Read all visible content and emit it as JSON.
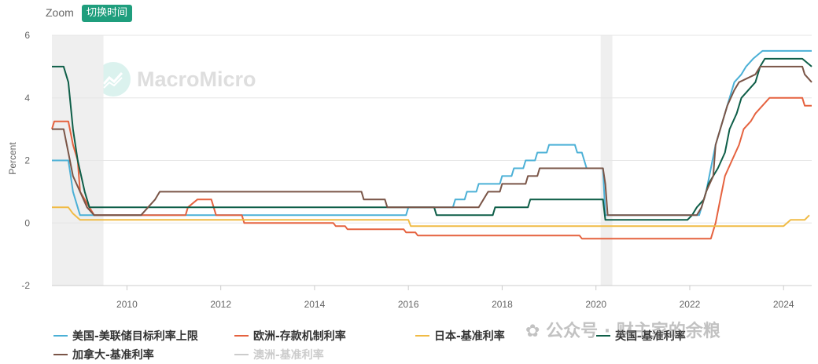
{
  "toolbar": {
    "zoom_label": "Zoom",
    "switch_time_label": "切换时间"
  },
  "watermark": {
    "logo_text": "MacroMicro",
    "wechat_text": "公众号 · 财主家的余粮"
  },
  "chart_data": {
    "type": "line",
    "title": "",
    "xlabel": "",
    "ylabel": "Percent",
    "xlim": [
      2008.4,
      2024.6
    ],
    "ylim": [
      -2,
      6
    ],
    "x_ticks": [
      "2010",
      "2012",
      "2014",
      "2016",
      "2018",
      "2020",
      "2022",
      "2024"
    ],
    "y_ticks": [
      "-2",
      "0",
      "2",
      "4",
      "6"
    ],
    "grid": "horizontal",
    "legend_position": "bottom",
    "recession_bands": [
      [
        2008.4,
        2009.5
      ],
      [
        2020.1,
        2020.35
      ]
    ],
    "series": [
      {
        "name": "美国-美联储目标利率上限",
        "color": "#4bb0d6",
        "visible": true,
        "points": [
          [
            2008.4,
            2.0
          ],
          [
            2008.75,
            2.0
          ],
          [
            2008.8,
            1.5
          ],
          [
            2008.85,
            1.0
          ],
          [
            2009.0,
            0.25
          ],
          [
            2015.95,
            0.25
          ],
          [
            2016.0,
            0.5
          ],
          [
            2016.95,
            0.5
          ],
          [
            2017.0,
            0.75
          ],
          [
            2017.2,
            0.75
          ],
          [
            2017.25,
            1.0
          ],
          [
            2017.45,
            1.0
          ],
          [
            2017.5,
            1.25
          ],
          [
            2017.95,
            1.25
          ],
          [
            2018.0,
            1.5
          ],
          [
            2018.2,
            1.5
          ],
          [
            2018.25,
            1.75
          ],
          [
            2018.45,
            1.75
          ],
          [
            2018.5,
            2.0
          ],
          [
            2018.7,
            2.0
          ],
          [
            2018.75,
            2.25
          ],
          [
            2018.95,
            2.25
          ],
          [
            2019.0,
            2.5
          ],
          [
            2019.55,
            2.5
          ],
          [
            2019.6,
            2.25
          ],
          [
            2019.7,
            2.25
          ],
          [
            2019.75,
            2.0
          ],
          [
            2019.8,
            1.75
          ],
          [
            2020.15,
            1.75
          ],
          [
            2020.2,
            0.25
          ],
          [
            2022.2,
            0.25
          ],
          [
            2022.25,
            0.5
          ],
          [
            2022.35,
            1.0
          ],
          [
            2022.45,
            1.75
          ],
          [
            2022.55,
            2.5
          ],
          [
            2022.7,
            3.25
          ],
          [
            2022.85,
            4.0
          ],
          [
            2022.95,
            4.5
          ],
          [
            2023.1,
            4.75
          ],
          [
            2023.2,
            5.0
          ],
          [
            2023.35,
            5.25
          ],
          [
            2023.55,
            5.5
          ],
          [
            2024.6,
            5.5
          ]
        ]
      },
      {
        "name": "欧洲-存款机制利率",
        "color": "#e5623f",
        "visible": true,
        "points": [
          [
            2008.4,
            3.0
          ],
          [
            2008.45,
            3.25
          ],
          [
            2008.75,
            3.25
          ],
          [
            2008.85,
            2.5
          ],
          [
            2008.95,
            2.0
          ],
          [
            2009.0,
            1.0
          ],
          [
            2009.2,
            0.5
          ],
          [
            2009.3,
            0.25
          ],
          [
            2011.25,
            0.25
          ],
          [
            2011.3,
            0.5
          ],
          [
            2011.5,
            0.75
          ],
          [
            2011.8,
            0.75
          ],
          [
            2011.85,
            0.5
          ],
          [
            2011.9,
            0.25
          ],
          [
            2012.45,
            0.25
          ],
          [
            2012.5,
            0.0
          ],
          [
            2014.4,
            0.0
          ],
          [
            2014.45,
            -0.1
          ],
          [
            2014.65,
            -0.1
          ],
          [
            2014.7,
            -0.2
          ],
          [
            2015.9,
            -0.2
          ],
          [
            2015.95,
            -0.3
          ],
          [
            2016.15,
            -0.3
          ],
          [
            2016.2,
            -0.4
          ],
          [
            2019.65,
            -0.4
          ],
          [
            2019.7,
            -0.5
          ],
          [
            2022.45,
            -0.5
          ],
          [
            2022.55,
            0.0
          ],
          [
            2022.65,
            0.75
          ],
          [
            2022.75,
            1.5
          ],
          [
            2022.9,
            2.0
          ],
          [
            2023.05,
            2.5
          ],
          [
            2023.15,
            3.0
          ],
          [
            2023.3,
            3.25
          ],
          [
            2023.4,
            3.5
          ],
          [
            2023.55,
            3.75
          ],
          [
            2023.7,
            4.0
          ],
          [
            2024.4,
            4.0
          ],
          [
            2024.45,
            3.75
          ],
          [
            2024.6,
            3.75
          ]
        ]
      },
      {
        "name": "日本-基准利率",
        "color": "#f0bb45",
        "visible": true,
        "points": [
          [
            2008.4,
            0.5
          ],
          [
            2008.75,
            0.5
          ],
          [
            2008.85,
            0.3
          ],
          [
            2009.0,
            0.1
          ],
          [
            2016.0,
            0.1
          ],
          [
            2016.05,
            -0.1
          ],
          [
            2024.0,
            -0.1
          ],
          [
            2024.15,
            0.1
          ],
          [
            2024.45,
            0.1
          ],
          [
            2024.55,
            0.25
          ]
        ]
      },
      {
        "name": "英国-基准利率",
        "color": "#0e5e48",
        "visible": true,
        "points": [
          [
            2008.4,
            5.0
          ],
          [
            2008.65,
            5.0
          ],
          [
            2008.75,
            4.5
          ],
          [
            2008.85,
            3.0
          ],
          [
            2008.95,
            2.0
          ],
          [
            2009.1,
            1.0
          ],
          [
            2009.2,
            0.5
          ],
          [
            2016.55,
            0.5
          ],
          [
            2016.6,
            0.25
          ],
          [
            2017.8,
            0.25
          ],
          [
            2017.85,
            0.5
          ],
          [
            2018.55,
            0.5
          ],
          [
            2018.6,
            0.75
          ],
          [
            2020.15,
            0.75
          ],
          [
            2020.2,
            0.1
          ],
          [
            2021.95,
            0.1
          ],
          [
            2022.05,
            0.25
          ],
          [
            2022.15,
            0.5
          ],
          [
            2022.3,
            0.75
          ],
          [
            2022.4,
            1.25
          ],
          [
            2022.6,
            1.75
          ],
          [
            2022.75,
            2.25
          ],
          [
            2022.85,
            3.0
          ],
          [
            2023.0,
            3.5
          ],
          [
            2023.1,
            4.0
          ],
          [
            2023.25,
            4.25
          ],
          [
            2023.4,
            4.5
          ],
          [
            2023.5,
            5.0
          ],
          [
            2023.6,
            5.25
          ],
          [
            2024.4,
            5.25
          ],
          [
            2024.6,
            5.0
          ]
        ]
      },
      {
        "name": "加拿大-基准利率",
        "color": "#7a5547",
        "visible": true,
        "points": [
          [
            2008.4,
            3.0
          ],
          [
            2008.65,
            3.0
          ],
          [
            2008.75,
            2.25
          ],
          [
            2008.85,
            1.5
          ],
          [
            2009.0,
            1.0
          ],
          [
            2009.15,
            0.5
          ],
          [
            2009.3,
            0.25
          ],
          [
            2010.3,
            0.25
          ],
          [
            2010.45,
            0.5
          ],
          [
            2010.6,
            0.75
          ],
          [
            2010.7,
            1.0
          ],
          [
            2015.0,
            1.0
          ],
          [
            2015.05,
            0.75
          ],
          [
            2015.5,
            0.75
          ],
          [
            2015.55,
            0.5
          ],
          [
            2017.5,
            0.5
          ],
          [
            2017.6,
            0.75
          ],
          [
            2017.7,
            1.0
          ],
          [
            2017.95,
            1.0
          ],
          [
            2018.0,
            1.25
          ],
          [
            2018.5,
            1.25
          ],
          [
            2018.55,
            1.5
          ],
          [
            2018.75,
            1.5
          ],
          [
            2018.8,
            1.75
          ],
          [
            2020.15,
            1.75
          ],
          [
            2020.2,
            1.25
          ],
          [
            2020.25,
            0.25
          ],
          [
            2022.15,
            0.25
          ],
          [
            2022.25,
            0.5
          ],
          [
            2022.35,
            1.0
          ],
          [
            2022.5,
            1.5
          ],
          [
            2022.55,
            2.5
          ],
          [
            2022.7,
            3.25
          ],
          [
            2022.8,
            3.75
          ],
          [
            2022.95,
            4.25
          ],
          [
            2023.05,
            4.5
          ],
          [
            2023.4,
            4.75
          ],
          [
            2023.5,
            5.0
          ],
          [
            2024.4,
            5.0
          ],
          [
            2024.45,
            4.75
          ],
          [
            2024.6,
            4.5
          ]
        ]
      },
      {
        "name": "澳洲-基准利率",
        "color": "#cccccc",
        "visible": false,
        "points": []
      }
    ]
  }
}
